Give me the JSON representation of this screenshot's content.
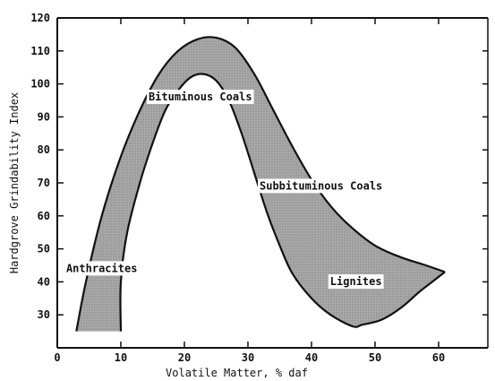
{
  "chart_data": {
    "type": "area",
    "title": "",
    "xlabel": "Volatile Matter, % daf",
    "ylabel": "Hardgrove Grindability Index",
    "xlim": [
      0,
      70
    ],
    "ylim": [
      20,
      120
    ],
    "x_ticks": [
      0,
      10,
      20,
      30,
      40,
      50,
      60
    ],
    "y_ticks": [
      30,
      40,
      50,
      60,
      70,
      80,
      90,
      100,
      110,
      120
    ],
    "grid": false,
    "band": {
      "upper": [
        [
          3,
          25
        ],
        [
          4.5,
          40
        ],
        [
          7,
          60
        ],
        [
          10,
          78
        ],
        [
          13,
          92
        ],
        [
          16,
          103
        ],
        [
          19,
          110
        ],
        [
          22,
          113.5
        ],
        [
          25,
          114
        ],
        [
          28,
          111
        ],
        [
          31,
          103
        ],
        [
          34,
          92
        ],
        [
          37,
          81
        ],
        [
          40,
          71
        ],
        [
          43,
          63
        ],
        [
          46,
          57
        ],
        [
          50,
          51
        ],
        [
          54,
          47.5
        ],
        [
          58,
          45
        ],
        [
          61,
          43
        ]
      ],
      "lower": [
        [
          10,
          25
        ],
        [
          10,
          40
        ],
        [
          11,
          55
        ],
        [
          13,
          70
        ],
        [
          15,
          82
        ],
        [
          17,
          92
        ],
        [
          19,
          98
        ],
        [
          21,
          102
        ],
        [
          23,
          103
        ],
        [
          25,
          101
        ],
        [
          27,
          95
        ],
        [
          29,
          85
        ],
        [
          31,
          73
        ],
        [
          33,
          61
        ],
        [
          35,
          51
        ],
        [
          37,
          42.5
        ],
        [
          40,
          35
        ],
        [
          43,
          30
        ],
        [
          46.5,
          26.5
        ],
        [
          48,
          27
        ],
        [
          51,
          28.5
        ],
        [
          54,
          32
        ],
        [
          57,
          37
        ],
        [
          59,
          40
        ],
        [
          61,
          43
        ]
      ]
    },
    "region_labels": [
      {
        "text": "Bituminous Coals",
        "x": 22.5,
        "y": 95
      },
      {
        "text": "Subbituminous Coals",
        "x": 41.5,
        "y": 68
      },
      {
        "text": "Anthracites",
        "x": 7,
        "y": 43
      },
      {
        "text": "Lignites",
        "x": 47,
        "y": 39
      }
    ],
    "fill_color": "#a8a8a8",
    "stroke_color": "#111111"
  }
}
